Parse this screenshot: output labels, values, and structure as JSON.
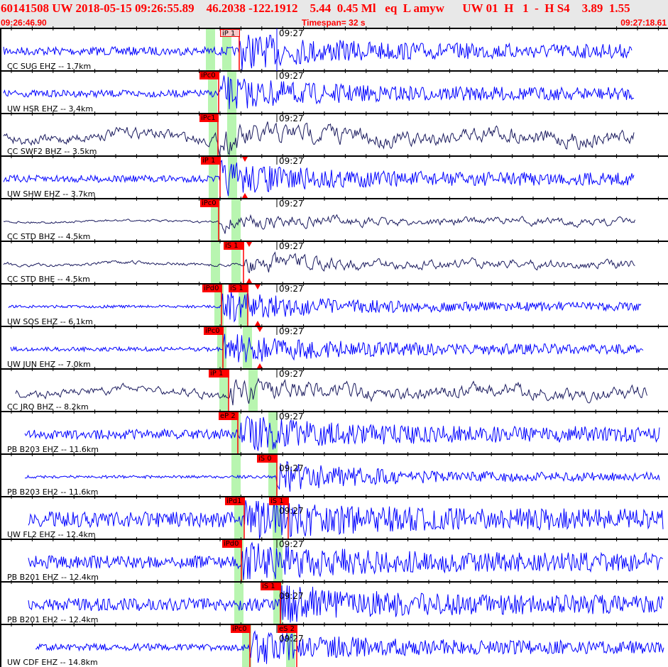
{
  "header": {
    "line1": "60141508 UW 2018-05-15 09:26:55.89    46.2038 -122.1912    5.44  0.45 Ml   eq  L amyw      UW 01  H   1  -  H S4    3.89  1.55",
    "start_time": "09:26:46.90",
    "timespan": "Timespan=  32 s",
    "end_time": "09:27:18.61"
  },
  "minute_label": "09:27",
  "colors": {
    "header_text": "#ff0000",
    "trace_blue": "#0000ff",
    "trace_navy": "#1a1a5e",
    "pick": "#ff0000",
    "window": "#b8f5b0"
  },
  "traces": [
    {
      "label": "CC SUG EHZ -- 1.7km",
      "picks": [
        "iP 1"
      ]
    },
    {
      "label": "UW HSR EHZ -- 3.4km",
      "picks": [
        "iPc0"
      ]
    },
    {
      "label": "CC SWF2 BHZ -- 3.5km",
      "picks": [
        "iPc1"
      ]
    },
    {
      "label": "UW SHW EHZ -- 3.7km",
      "picks": [
        "iP 1"
      ]
    },
    {
      "label": "CC STD BHZ -- 4.5km",
      "picks": [
        "iPc0"
      ]
    },
    {
      "label": "CC STD BHE -- 4.5km",
      "picks": [
        "iS 1"
      ]
    },
    {
      "label": "UW SOS EHZ -- 6.1km",
      "picks": [
        "iPd0",
        "iS 1"
      ]
    },
    {
      "label": "UW JUN EHZ -- 7.0km",
      "picks": [
        "iPc0"
      ]
    },
    {
      "label": "CC JRO BHZ -- 8.2km",
      "picks": [
        "iP 1"
      ]
    },
    {
      "label": "PB B203 EHZ -- 11.6km",
      "picks": [
        "eP 2"
      ]
    },
    {
      "label": "PB B203 EH2 -- 11.6km",
      "picks": [
        "iS 0"
      ]
    },
    {
      "label": "UW FL2 EHZ -- 12.4km",
      "picks": [
        "iPd1",
        "iS 1"
      ]
    },
    {
      "label": "PB B201 EHZ -- 12.4km",
      "picks": [
        "iPd0"
      ]
    },
    {
      "label": "PB B201 EH2 -- 12.4km",
      "picks": [
        "iS 1"
      ]
    },
    {
      "label": "UW CDF EHZ -- 14.8km",
      "picks": [
        "iPc0",
        "eS 2"
      ]
    }
  ]
}
